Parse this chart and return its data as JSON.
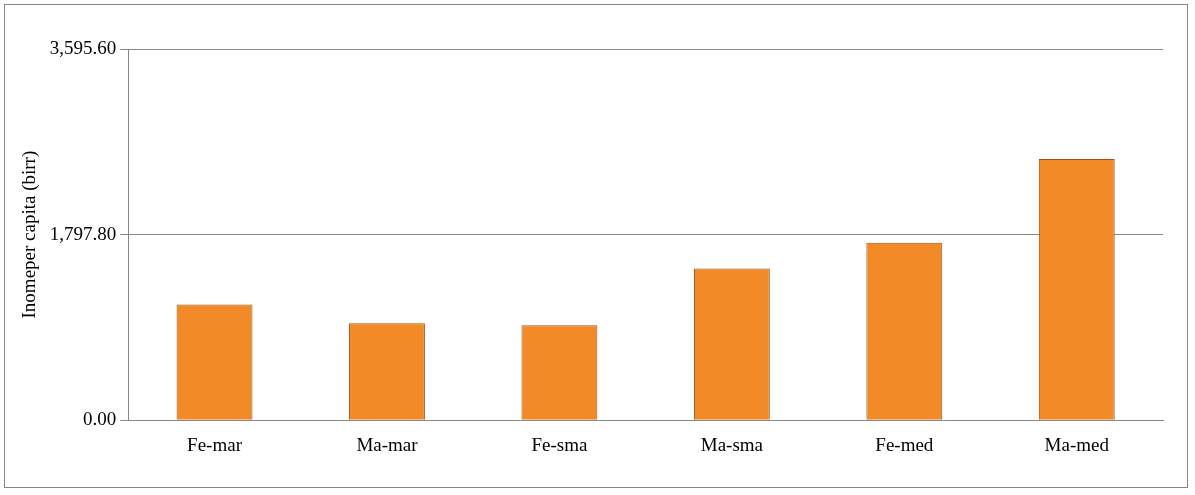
{
  "chart_data": {
    "type": "bar",
    "ylabel": "Inomeper capita (birr)",
    "categories": [
      "Fe-mar",
      "Ma-mar",
      "Fe-sma",
      "Ma-sma",
      "Fe-med",
      "Ma-med"
    ],
    "values": [
      1120,
      940,
      920,
      1470,
      1720,
      2530
    ],
    "color": "#f28a28",
    "ylim": [
      0,
      3595.6
    ],
    "yticks": [
      {
        "value": 0,
        "label": "0.00"
      },
      {
        "value": 1797.8,
        "label": "1,797.80"
      },
      {
        "value": 3595.6,
        "label": "3,595.60"
      }
    ],
    "grid": "y",
    "legend": false
  }
}
